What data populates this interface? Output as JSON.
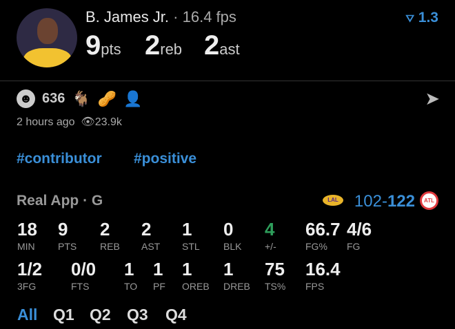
{
  "player": {
    "name": "B. James Jr.",
    "fps": "16.4 fps",
    "pts": "9",
    "pts_label": "pts",
    "reb": "2",
    "reb_label": "reb",
    "ast": "2",
    "ast_label": "ast",
    "rating": "1.3"
  },
  "reactions": {
    "count": "636",
    "emojis": [
      "🐐",
      "🥜",
      "👤"
    ]
  },
  "meta": {
    "time": "2 hours ago",
    "views": "23.9k"
  },
  "tags": [
    "#contributor",
    "#positive"
  ],
  "game": {
    "source": "Real App · G",
    "score_home": "102",
    "score_away": "122",
    "home_team": "LAL",
    "away_team": "ATL"
  },
  "stats_row1": [
    {
      "v": "18",
      "l": "MIN"
    },
    {
      "v": "9",
      "l": "PTS"
    },
    {
      "v": "2",
      "l": "REB"
    },
    {
      "v": "2",
      "l": "AST"
    },
    {
      "v": "1",
      "l": "STL"
    },
    {
      "v": "0",
      "l": "BLK"
    },
    {
      "v": "4",
      "l": "+/-"
    },
    {
      "v": "66.7",
      "l": "FG%"
    },
    {
      "v": "4/6",
      "l": "FG"
    }
  ],
  "stats_row2": [
    {
      "v": "1/2",
      "l": "3FG"
    },
    {
      "v": "0/0",
      "l": "FTS"
    },
    {
      "v": "1",
      "l": "TO"
    },
    {
      "v": "1",
      "l": "PF"
    },
    {
      "v": "1",
      "l": "OREB"
    },
    {
      "v": "1",
      "l": "DREB"
    },
    {
      "v": "75",
      "l": "TS%"
    },
    {
      "v": "16.4",
      "l": "FPS"
    }
  ],
  "quarters": [
    "All",
    "Q1",
    "Q2",
    "Q3",
    "Q4"
  ],
  "colors": {
    "accent": "#3a8fd8",
    "positive": "#2e9e5b",
    "hawks": "#e03a3e"
  }
}
